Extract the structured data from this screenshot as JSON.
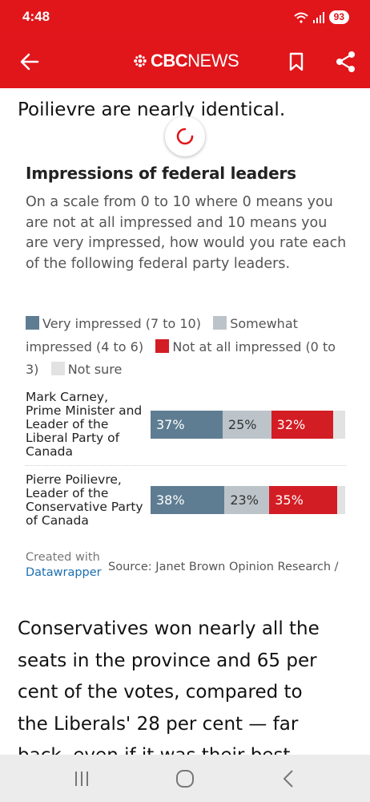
{
  "status_bar": {
    "time": "4:48",
    "battery": "93"
  },
  "app_bar": {
    "logo_bold": "CBC",
    "logo_light": "NEWS"
  },
  "article": {
    "top_line": "Poilievre are nearly identical.",
    "body_lines": [
      "Conservatives won nearly all the",
      "seats in the province and 65 per",
      "cent of the votes, compared to",
      "the Liberals' 28 per cent — far",
      "back, even if it was their best"
    ]
  },
  "chart": {
    "title": "Impressions of federal leaders",
    "description": "On a scale from 0 to 10 where 0 means you are not at all impressed and 10 means you are very impressed, how would you rate each of the following federal party leaders.",
    "colors": {
      "very": "#5f7d92",
      "somewhat": "#bcc4ca",
      "not_at_all": "#d31d24",
      "not_sure": "#e2e2e2"
    },
    "legend": [
      {
        "label": "Very impressed (7 to 10)",
        "color": "#5f7d92"
      },
      {
        "label": "Somewhat impressed (4 to 6)",
        "color": "#bcc4ca"
      },
      {
        "label": "Not at all impressed (0 to 3)",
        "color": "#d31d24"
      },
      {
        "label": "Not sure",
        "color": "#e2e2e2"
      }
    ],
    "credit_created": "Created with",
    "credit_link": "Datawrapper",
    "source": "Source: Janet Brown Opinion Research /"
  },
  "chart_data": {
    "type": "bar",
    "orientation": "horizontal-stacked",
    "title": "Impressions of federal leaders",
    "categories": [
      "Mark Carney, Prime Minister and Leader of the Liberal Party of Canada",
      "Pierre Poilievre, Leader of the Conservative Party of Canada"
    ],
    "series": [
      {
        "name": "Very impressed (7 to 10)",
        "values": [
          37,
          38
        ],
        "labels": [
          "37%",
          "38%"
        ]
      },
      {
        "name": "Somewhat impressed (4 to 6)",
        "values": [
          25,
          23
        ],
        "labels": [
          "25%",
          "23%"
        ]
      },
      {
        "name": "Not at all impressed (0 to 3)",
        "values": [
          32,
          35
        ],
        "labels": [
          "32%",
          "35%"
        ]
      },
      {
        "name": "Not sure",
        "values": [
          6,
          4
        ],
        "labels": [
          "",
          ""
        ]
      }
    ],
    "xlim": [
      0,
      100
    ],
    "legend_position": "top"
  }
}
